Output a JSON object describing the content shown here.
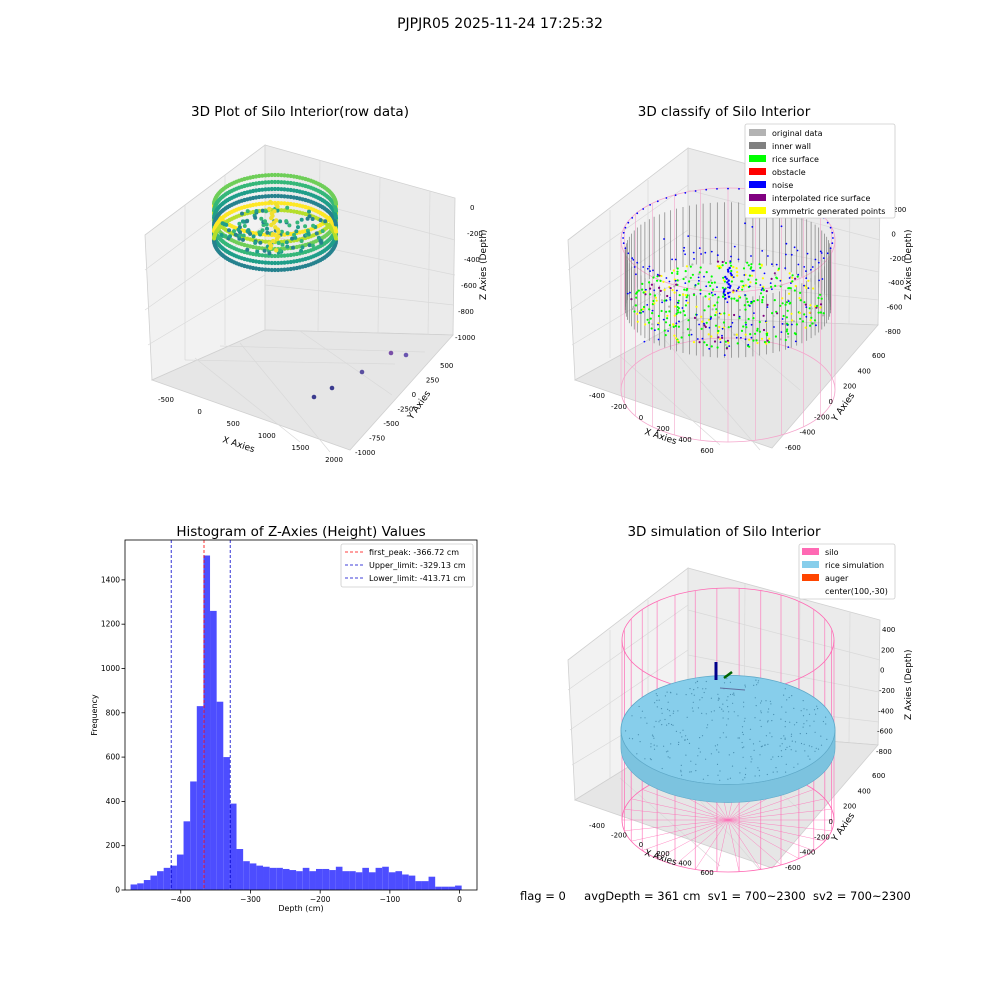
{
  "suptitle": "PJPJR05 2025-11-24 17:25:32",
  "footer": {
    "flag": "flag = 0",
    "avg_depth": "avgDepth = 361 cm",
    "sv1": "sv1 = 700~2300",
    "sv2": "sv2 = 700~2300"
  },
  "chart_data": [
    {
      "type": "scatter",
      "projection": "3d",
      "title": "3D Plot of Silo Interior(row data)",
      "xlabel": "X Axies",
      "ylabel": "Y Axies",
      "zlabel": "Z Axies (Depth)",
      "x_ticks": [
        "-500",
        "0",
        "500",
        "1000",
        "1500",
        "2000"
      ],
      "y_ticks": [
        "500",
        "250",
        "0",
        "-250",
        "-500",
        "-750",
        "-1000"
      ],
      "z_ticks": [
        "0",
        "-200",
        "-400",
        "-600",
        "-800",
        "-1000"
      ],
      "colormap": "viridis"
    },
    {
      "type": "scatter",
      "projection": "3d",
      "title": "3D classify of Silo Interior",
      "xlabel": "X Axies",
      "ylabel": "Y Axies",
      "zlabel": "Z Axies (Depth)",
      "x_ticks": [
        "-400",
        "-200",
        "0",
        "200",
        "400",
        "600"
      ],
      "y_ticks": [
        "600",
        "400",
        "200",
        "0",
        "-200",
        "-400",
        "-600"
      ],
      "z_ticks": [
        "200",
        "0",
        "-200",
        "-400",
        "-600",
        "-800"
      ],
      "legend_position": "top-right",
      "legend": [
        {
          "label": "original data",
          "color": "#b3b3b3"
        },
        {
          "label": "inner wall",
          "color": "#808080"
        },
        {
          "label": "rice surface",
          "color": "#00ff00"
        },
        {
          "label": "obstacle",
          "color": "#ff0000"
        },
        {
          "label": "noise",
          "color": "#0000ff"
        },
        {
          "label": "interpolated rice surface",
          "color": "#800080"
        },
        {
          "label": "symmetric generated points",
          "color": "#ffff00"
        }
      ]
    },
    {
      "type": "bar",
      "title": "Histogram of Z-Axies (Height) Values",
      "xlabel": "Depth (cm)",
      "ylabel": "Frequency",
      "xlim": [
        -480,
        25
      ],
      "ylim": [
        0,
        1580
      ],
      "x_ticks": [
        -400,
        -300,
        -200,
        -100,
        0
      ],
      "y_ticks": [
        0,
        200,
        400,
        600,
        800,
        1000,
        1200,
        1400
      ],
      "bar_color": "#4d4dff",
      "bin_width": 9.5,
      "bin_start": -472,
      "values": [
        25,
        30,
        45,
        65,
        85,
        100,
        110,
        160,
        310,
        490,
        830,
        1510,
        1260,
        850,
        600,
        390,
        185,
        130,
        120,
        110,
        105,
        100,
        100,
        95,
        90,
        85,
        100,
        85,
        95,
        95,
        90,
        105,
        85,
        85,
        80,
        100,
        80,
        100,
        105,
        80,
        85,
        70,
        65,
        40,
        40,
        60,
        15,
        15,
        15,
        20
      ],
      "vlines": [
        {
          "label": "first_peak: -366.72 cm",
          "x": -366.72,
          "color": "#ff0000"
        },
        {
          "label": "Upper_limit: -329.13 cm",
          "x": -329.13,
          "color": "#0000cc"
        },
        {
          "label": "Lower_limit: -413.71 cm",
          "x": -413.71,
          "color": "#0000cc"
        }
      ],
      "legend_position": "top-right"
    },
    {
      "type": "scatter",
      "projection": "3d",
      "title": "3D simulation of Silo Interior",
      "xlabel": "X Axies",
      "ylabel": "Y Axies",
      "zlabel": "Z Axies (Depth)",
      "x_ticks": [
        "-400",
        "-200",
        "0",
        "200",
        "400",
        "600"
      ],
      "y_ticks": [
        "600",
        "400",
        "200",
        "0",
        "-200",
        "-400",
        "-600"
      ],
      "z_ticks": [
        "400",
        "200",
        "0",
        "-200",
        "-400",
        "-600",
        "-800"
      ],
      "legend_position": "top-right",
      "legend": [
        {
          "label": "silo",
          "color": "#ff69b4"
        },
        {
          "label": "rice simulation",
          "color": "#87ceeb"
        },
        {
          "label": "auger",
          "color": "#ff4500"
        },
        {
          "label": "center(100,-30)",
          "color": ""
        }
      ]
    }
  ]
}
